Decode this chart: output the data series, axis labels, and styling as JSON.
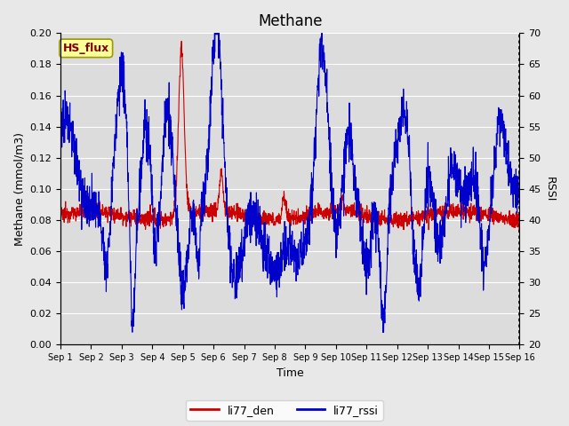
{
  "title": "Methane",
  "xlabel": "Time",
  "ylabel_left": "Methane (mmol/m3)",
  "ylabel_right": "RSSI",
  "ylim_left": [
    0.0,
    0.2
  ],
  "ylim_right": [
    20,
    70
  ],
  "yticks_left": [
    0.0,
    0.02,
    0.04,
    0.06,
    0.08,
    0.1,
    0.12,
    0.14,
    0.16,
    0.18,
    0.2
  ],
  "yticks_right": [
    20,
    25,
    30,
    35,
    40,
    45,
    50,
    55,
    60,
    65,
    70
  ],
  "xtick_labels": [
    "Sep 1",
    "Sep 2",
    "Sep 3",
    "Sep 4",
    "Sep 5",
    "Sep 6",
    "Sep 7",
    "Sep 8",
    "Sep 9",
    "Sep 10",
    "Sep 11",
    "Sep 12",
    "Sep 13",
    "Sep 14",
    "Sep 15",
    "Sep 16"
  ],
  "color_red": "#cc0000",
  "color_blue": "#0000cc",
  "fig_bg_color": "#e8e8e8",
  "plot_bg_color": "#dcdcdc",
  "annotation_text": "HS_flux",
  "annotation_bg": "#ffff99",
  "annotation_border": "#999900",
  "legend_items": [
    "li77_den",
    "li77_rssi"
  ],
  "title_fontsize": 12,
  "label_fontsize": 9,
  "tick_fontsize": 8
}
